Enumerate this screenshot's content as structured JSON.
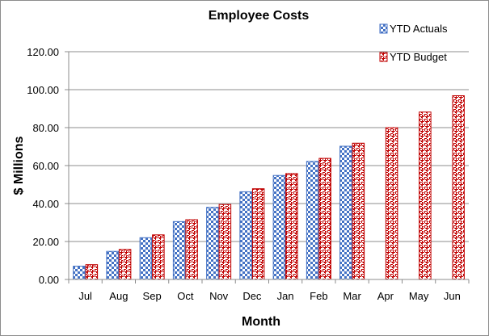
{
  "chart_data": {
    "type": "bar",
    "title": "Employee Costs",
    "xlabel": "Month",
    "ylabel": "$ Millions",
    "categories": [
      "Jul",
      "Aug",
      "Sep",
      "Oct",
      "Nov",
      "Dec",
      "Jan",
      "Feb",
      "Mar",
      "Apr",
      "May",
      "Jun"
    ],
    "ylim": [
      0,
      120
    ],
    "yticks": [
      "0.00",
      "20.00",
      "40.00",
      "60.00",
      "80.00",
      "100.00",
      "120.00"
    ],
    "grid": true,
    "legend_position": "top-right",
    "series": [
      {
        "name": "YTD Actuals",
        "values": [
          7,
          14.8,
          22,
          30.5,
          38,
          46.2,
          54.8,
          62.2,
          70.2,
          null,
          null,
          null
        ],
        "color": "#4472c4",
        "pattern": "checker"
      },
      {
        "name": "YTD Budget",
        "values": [
          7.8,
          15.8,
          23.5,
          31.5,
          39.5,
          47.8,
          55.8,
          63.8,
          71.8,
          80,
          88.2,
          96.8
        ],
        "color": "#c00000",
        "pattern": "woven"
      }
    ]
  }
}
